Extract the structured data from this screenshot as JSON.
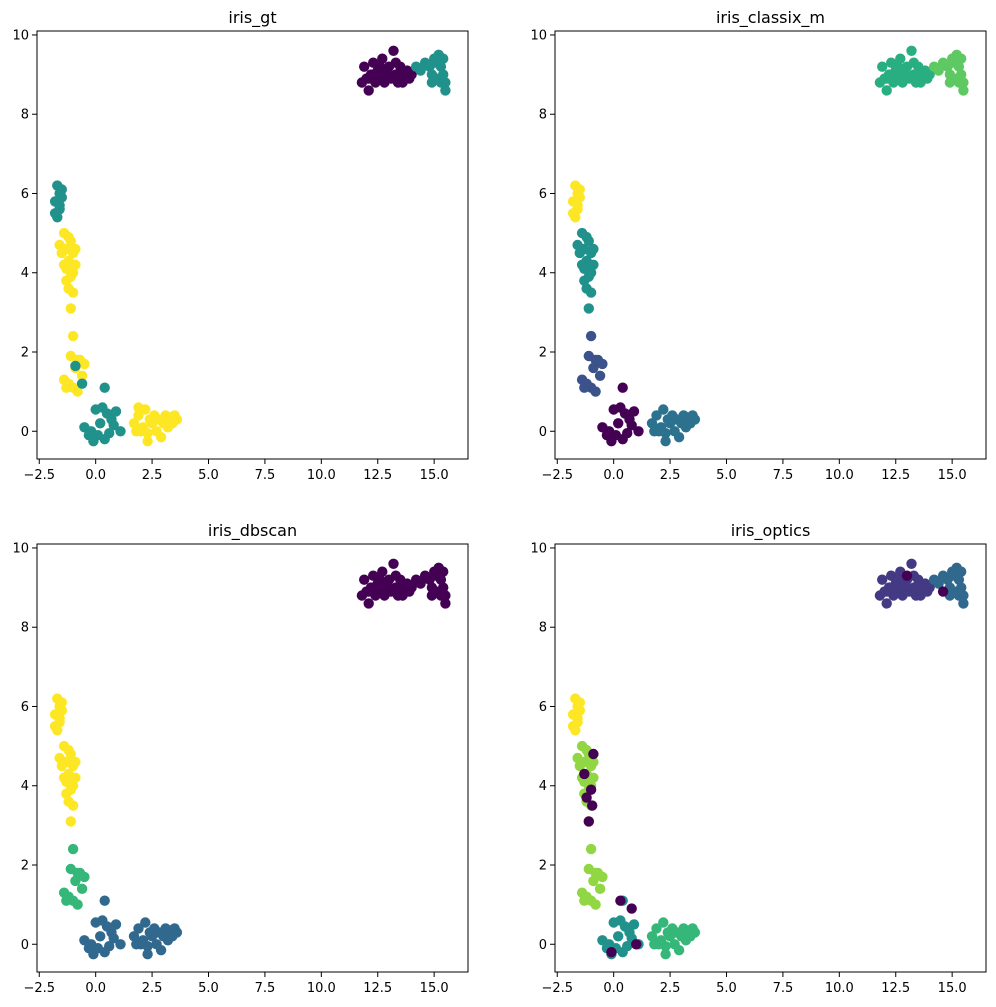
{
  "chart_data": [
    {
      "type": "scatter",
      "title": "iris_gt",
      "xlim": [
        -2.6,
        16.5
      ],
      "ylim": [
        -0.7,
        10.1
      ],
      "xticks": [
        -2.5,
        0.0,
        2.5,
        5.0,
        7.5,
        10.0,
        12.5,
        15.0
      ],
      "xtick_labels": [
        "−2.5",
        "0.0",
        "2.5",
        "5.0",
        "7.5",
        "10.0",
        "12.5",
        "15.0"
      ],
      "yticks": [
        0,
        2,
        4,
        6,
        8,
        10
      ],
      "ytick_labels": [
        "0",
        "2",
        "4",
        "6",
        "8",
        "10"
      ],
      "labels_by_cluster": [
        0,
        1,
        1,
        2,
        2,
        1,
        2
      ],
      "colors": [
        "#440154",
        "#21918c",
        "#fde725"
      ],
      "extra_points": [
        [
          -0.9,
          1.65,
          1
        ],
        [
          -0.6,
          1.2,
          1
        ],
        [
          1.9,
          0.6,
          2
        ]
      ]
    },
    {
      "type": "scatter",
      "title": "iris_classix_m",
      "xlim": [
        -2.6,
        16.5
      ],
      "ylim": [
        -0.7,
        10.1
      ],
      "xticks": [
        -2.5,
        0.0,
        2.5,
        5.0,
        7.5,
        10.0,
        12.5,
        15.0
      ],
      "xtick_labels": [
        "−2.5",
        "0.0",
        "2.5",
        "5.0",
        "7.5",
        "10.0",
        "12.5",
        "15.0"
      ],
      "yticks": [
        0,
        2,
        4,
        6,
        8,
        10
      ],
      "ytick_labels": [
        "0",
        "2",
        "4",
        "6",
        "8",
        "10"
      ],
      "labels_by_cluster": [
        4,
        5,
        6,
        3,
        1,
        0,
        2
      ],
      "colors": [
        "#440154",
        "#3b528b",
        "#2c728e",
        "#21918c",
        "#28ae80",
        "#5ec962",
        "#fde725"
      ],
      "extra_points": []
    },
    {
      "type": "scatter",
      "title": "iris_dbscan",
      "xlim": [
        -2.6,
        16.5
      ],
      "ylim": [
        -0.7,
        10.1
      ],
      "xticks": [
        -2.5,
        0.0,
        2.5,
        5.0,
        7.5,
        10.0,
        12.5,
        15.0
      ],
      "xtick_labels": [
        "−2.5",
        "0.0",
        "2.5",
        "5.0",
        "7.5",
        "10.0",
        "12.5",
        "15.0"
      ],
      "yticks": [
        0,
        2,
        4,
        6,
        8,
        10
      ],
      "ytick_labels": [
        "0",
        "2",
        "4",
        "6",
        "8",
        "10"
      ],
      "labels_by_cluster": [
        0,
        0,
        3,
        3,
        2,
        1,
        1
      ],
      "colors": [
        "#440154",
        "#31688e",
        "#35b779",
        "#fde725"
      ],
      "extra_points": []
    },
    {
      "type": "scatter",
      "title": "iris_optics",
      "xlim": [
        -2.6,
        16.5
      ],
      "ylim": [
        -0.7,
        10.1
      ],
      "xticks": [
        -2.5,
        0.0,
        2.5,
        5.0,
        7.5,
        10.0,
        12.5,
        15.0
      ],
      "xtick_labels": [
        "−2.5",
        "0.0",
        "2.5",
        "5.0",
        "7.5",
        "10.0",
        "12.5",
        "15.0"
      ],
      "yticks": [
        0,
        2,
        4,
        6,
        8,
        10
      ],
      "ytick_labels": [
        "0",
        "2",
        "4",
        "6",
        "8",
        "10"
      ],
      "labels_by_cluster": [
        1,
        2,
        6,
        5,
        5,
        3,
        4
      ],
      "colors": [
        "#440154",
        "#443983",
        "#31688e",
        "#21918c",
        "#35b779",
        "#90d743",
        "#fde725"
      ],
      "extra_points": [
        [
          -1.3,
          4.3,
          0
        ],
        [
          -1.0,
          3.9,
          0
        ],
        [
          -0.9,
          4.8,
          0
        ],
        [
          -1.2,
          3.7,
          0
        ],
        [
          -0.95,
          3.5,
          0
        ],
        [
          -1.1,
          3.1,
          0
        ],
        [
          0.3,
          1.1,
          0
        ],
        [
          0.8,
          0.9,
          0
        ],
        [
          -0.1,
          -0.2,
          0
        ],
        [
          1.0,
          0.0,
          0
        ],
        [
          14.6,
          8.9,
          0
        ],
        [
          13.0,
          9.3,
          0
        ]
      ]
    }
  ],
  "base_points": {
    "note": "shared 2-D embedding coordinates grouped into 7 spatial groups",
    "groups": [
      [
        [
          11.8,
          8.8
        ],
        [
          11.9,
          9.2
        ],
        [
          12.0,
          8.9
        ],
        [
          12.1,
          8.6
        ],
        [
          12.2,
          9.0
        ],
        [
          12.3,
          9.3
        ],
        [
          12.4,
          8.8
        ],
        [
          12.5,
          9.1
        ],
        [
          12.6,
          8.9
        ],
        [
          12.7,
          9.4
        ],
        [
          12.8,
          8.8
        ],
        [
          12.9,
          9.0
        ],
        [
          13.0,
          9.2
        ],
        [
          13.1,
          8.9
        ],
        [
          13.2,
          9.6
        ],
        [
          13.3,
          9.0
        ],
        [
          13.4,
          8.8
        ],
        [
          13.5,
          9.2
        ],
        [
          13.6,
          9.0
        ],
        [
          13.7,
          8.9
        ],
        [
          13.8,
          9.1
        ],
        [
          13.9,
          8.9
        ],
        [
          14.0,
          9.0
        ],
        [
          12.3,
          9.0
        ],
        [
          12.9,
          9.1
        ],
        [
          13.3,
          9.3
        ],
        [
          13.6,
          8.8
        ],
        [
          12.1,
          8.9
        ],
        [
          12.6,
          9.2
        ]
      ],
      [
        [
          14.2,
          9.2
        ],
        [
          14.4,
          9.1
        ],
        [
          14.6,
          9.3
        ],
        [
          14.8,
          9.2
        ],
        [
          14.9,
          9.0
        ],
        [
          15.0,
          9.4
        ],
        [
          15.1,
          8.9
        ],
        [
          15.2,
          9.5
        ],
        [
          15.3,
          9.2
        ],
        [
          15.4,
          9.0
        ],
        [
          15.5,
          8.8
        ],
        [
          15.5,
          8.6
        ],
        [
          15.3,
          8.8
        ],
        [
          15.1,
          9.3
        ],
        [
          15.4,
          9.4
        ],
        [
          14.9,
          8.8
        ]
      ],
      [
        [
          -1.8,
          5.8
        ],
        [
          -1.7,
          6.2
        ],
        [
          -1.6,
          6.0
        ],
        [
          -1.8,
          5.5
        ],
        [
          -1.5,
          6.1
        ],
        [
          -1.6,
          5.7
        ],
        [
          -1.7,
          5.4
        ],
        [
          -1.5,
          5.9
        ],
        [
          -1.6,
          5.6
        ]
      ],
      [
        [
          -1.6,
          4.7
        ],
        [
          -1.4,
          5.0
        ],
        [
          -1.3,
          4.6
        ],
        [
          -1.2,
          4.3
        ],
        [
          -1.1,
          4.8
        ],
        [
          -1.0,
          4.5
        ],
        [
          -1.3,
          4.1
        ],
        [
          -1.1,
          3.9
        ],
        [
          -0.9,
          4.2
        ],
        [
          -1.2,
          3.6
        ],
        [
          -1.0,
          3.5
        ],
        [
          -1.1,
          3.1
        ],
        [
          -1.4,
          4.2
        ],
        [
          -1.2,
          4.9
        ],
        [
          -1.0,
          4.0
        ],
        [
          -0.9,
          4.6
        ],
        [
          -1.5,
          4.5
        ],
        [
          -1.3,
          3.8
        ]
      ],
      [
        [
          -1.0,
          2.4
        ],
        [
          -1.1,
          1.9
        ],
        [
          -0.9,
          1.6
        ],
        [
          -0.7,
          1.8
        ],
        [
          -0.5,
          1.7
        ],
        [
          -1.4,
          1.3
        ],
        [
          -1.2,
          1.2
        ],
        [
          -1.0,
          1.1
        ],
        [
          -0.8,
          1.0
        ],
        [
          -0.6,
          1.4
        ],
        [
          -1.3,
          1.1
        ],
        [
          -0.8,
          1.8
        ]
      ],
      [
        [
          -0.5,
          0.1
        ],
        [
          -0.3,
          -0.1
        ],
        [
          -0.1,
          -0.25
        ],
        [
          0.1,
          -0.1
        ],
        [
          0.2,
          0.2
        ],
        [
          0.0,
          0.55
        ],
        [
          0.3,
          0.6
        ],
        [
          0.5,
          0.45
        ],
        [
          0.7,
          0.3
        ],
        [
          0.9,
          0.5
        ],
        [
          1.1,
          0.0
        ],
        [
          0.6,
          -0.05
        ],
        [
          0.4,
          -0.2
        ],
        [
          -0.2,
          0.0
        ],
        [
          0.8,
          0.15
        ],
        [
          0.4,
          1.1
        ]
      ],
      [
        [
          1.7,
          0.2
        ],
        [
          1.9,
          0.4
        ],
        [
          2.1,
          0.1
        ],
        [
          2.2,
          0.55
        ],
        [
          2.3,
          -0.05
        ],
        [
          2.5,
          0.2
        ],
        [
          2.6,
          0.4
        ],
        [
          2.7,
          0.0
        ],
        [
          2.8,
          0.3
        ],
        [
          2.9,
          -0.15
        ],
        [
          3.0,
          0.2
        ],
        [
          3.1,
          0.4
        ],
        [
          3.2,
          0.1
        ],
        [
          3.3,
          0.35
        ],
        [
          3.5,
          0.4
        ],
        [
          3.6,
          0.3
        ],
        [
          2.4,
          0.3
        ],
        [
          2.0,
          0.0
        ],
        [
          3.4,
          0.2
        ],
        [
          1.8,
          0.0
        ],
        [
          2.3,
          -0.25
        ]
      ]
    ]
  }
}
